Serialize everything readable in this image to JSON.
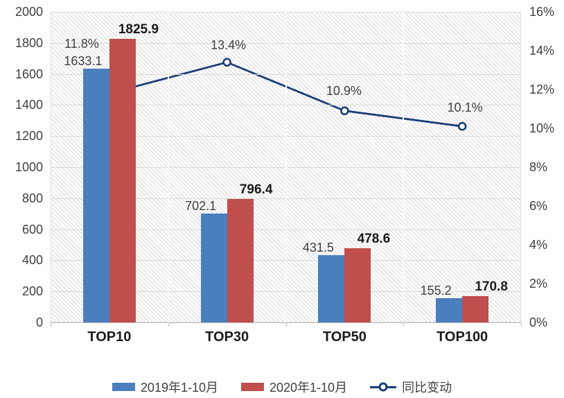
{
  "chart_data": {
    "type": "bar",
    "combo": "bar+line",
    "categories": [
      "TOP10",
      "TOP30",
      "TOP50",
      "TOP100"
    ],
    "series": [
      {
        "name": "2019年1-10月",
        "color": "#4A7EBD",
        "values": [
          1633.1,
          702.1,
          431.5,
          155.2
        ],
        "labels": [
          "1633.1",
          "702.1",
          "431.5",
          "155.2"
        ]
      },
      {
        "name": "2020年1-10月",
        "color": "#BF4E4D",
        "values": [
          1825.9,
          796.4,
          478.6,
          170.8
        ],
        "labels": [
          "1825.9",
          "796.4",
          "478.6",
          "170.8"
        ]
      }
    ],
    "line_series": {
      "name": "同比变动",
      "color": "#1B3C77",
      "values": [
        11.8,
        13.4,
        10.9,
        10.1
      ],
      "labels": [
        "11.8%",
        "13.4%",
        "10.9%",
        "10.1%"
      ],
      "marker": "open-circle"
    },
    "left_axis": {
      "min": 0,
      "max": 2000,
      "step": 200,
      "tick_labels": [
        "2000",
        "1800",
        "1600",
        "1400",
        "1200",
        "1000",
        "800",
        "600",
        "400",
        "200",
        "0"
      ]
    },
    "right_axis": {
      "min": 0,
      "max": 16,
      "step": 2,
      "tick_labels": [
        "16%",
        "14%",
        "12%",
        "10%",
        "8%",
        "6%",
        "4%",
        "2%",
        "0%"
      ]
    },
    "grid": true,
    "plot_background": "diagonal-hatch",
    "legend_position": "bottom"
  },
  "colors": {
    "bar_2019": "#4A7EBD",
    "bar_2020": "#BF4E4D",
    "line": "#1B3C77",
    "gridline": "#D9D9D9",
    "axis_line": "#BFBFBF",
    "text": "#3F3F3F",
    "text_strong": "#1A1A1A"
  }
}
